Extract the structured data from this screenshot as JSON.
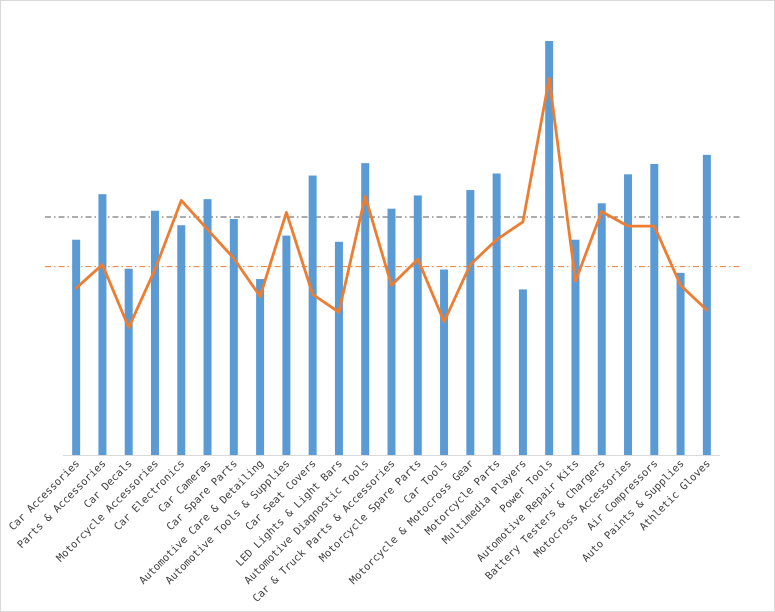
{
  "chart_data": {
    "type": "bar",
    "title": "",
    "xlabel": "",
    "ylabel": "",
    "ylim": [
      0,
      100
    ],
    "grid": false,
    "legend": "none",
    "categories": [
      "Car Accessories",
      "Parts & Accessories",
      "Car Decals",
      "Motorcycle Accessories",
      "Car Electronics",
      "Car Cameras",
      "Car Spare Parts",
      "Automotive Care & Detailing",
      "Automotive Tools & Supplies",
      "Car Seat Covers",
      "LED Lights & Light Bars",
      "Automotive Diagnostic Tools",
      "Car & Truck Parts & Accessories",
      "Motorcycle Spare Parts",
      "Car Tools",
      "Motorcycle & Motocross Gear",
      "Motorcycle Parts",
      "Multimedia Players",
      "Power Tools",
      "Automotive Repair Kits",
      "Battery Testers & Chargers",
      "Motocross Accessories",
      "Air Compressors",
      "Auto Paints & Supplies",
      "Athletic Gloves"
    ],
    "series": [
      {
        "kind": "bar",
        "color": "#5b9bd5",
        "values": [
          52,
          63,
          45,
          59,
          55.5,
          61.8,
          57,
          42.5,
          53,
          67.5,
          51.5,
          70.5,
          59.5,
          62.7,
          44.8,
          64,
          68,
          40,
          100,
          52,
          60.8,
          67.8,
          70.3,
          44,
          72.5
        ]
      },
      {
        "kind": "line",
        "color": "#ed7d31",
        "values": [
          40.3,
          46,
          30.8,
          44.8,
          61.5,
          54.5,
          47.5,
          38.3,
          58.6,
          38.8,
          34.5,
          62.5,
          41,
          47.3,
          32.2,
          46,
          52,
          56.3,
          91,
          42,
          58.8,
          55.3,
          55.3,
          41,
          35
        ]
      }
    ],
    "reference_lines": [
      {
        "value": 57.5,
        "color": "#595959",
        "style": "dash-dot"
      },
      {
        "value": 45.5,
        "color": "#ed7d31",
        "style": "dash-dot"
      }
    ]
  }
}
